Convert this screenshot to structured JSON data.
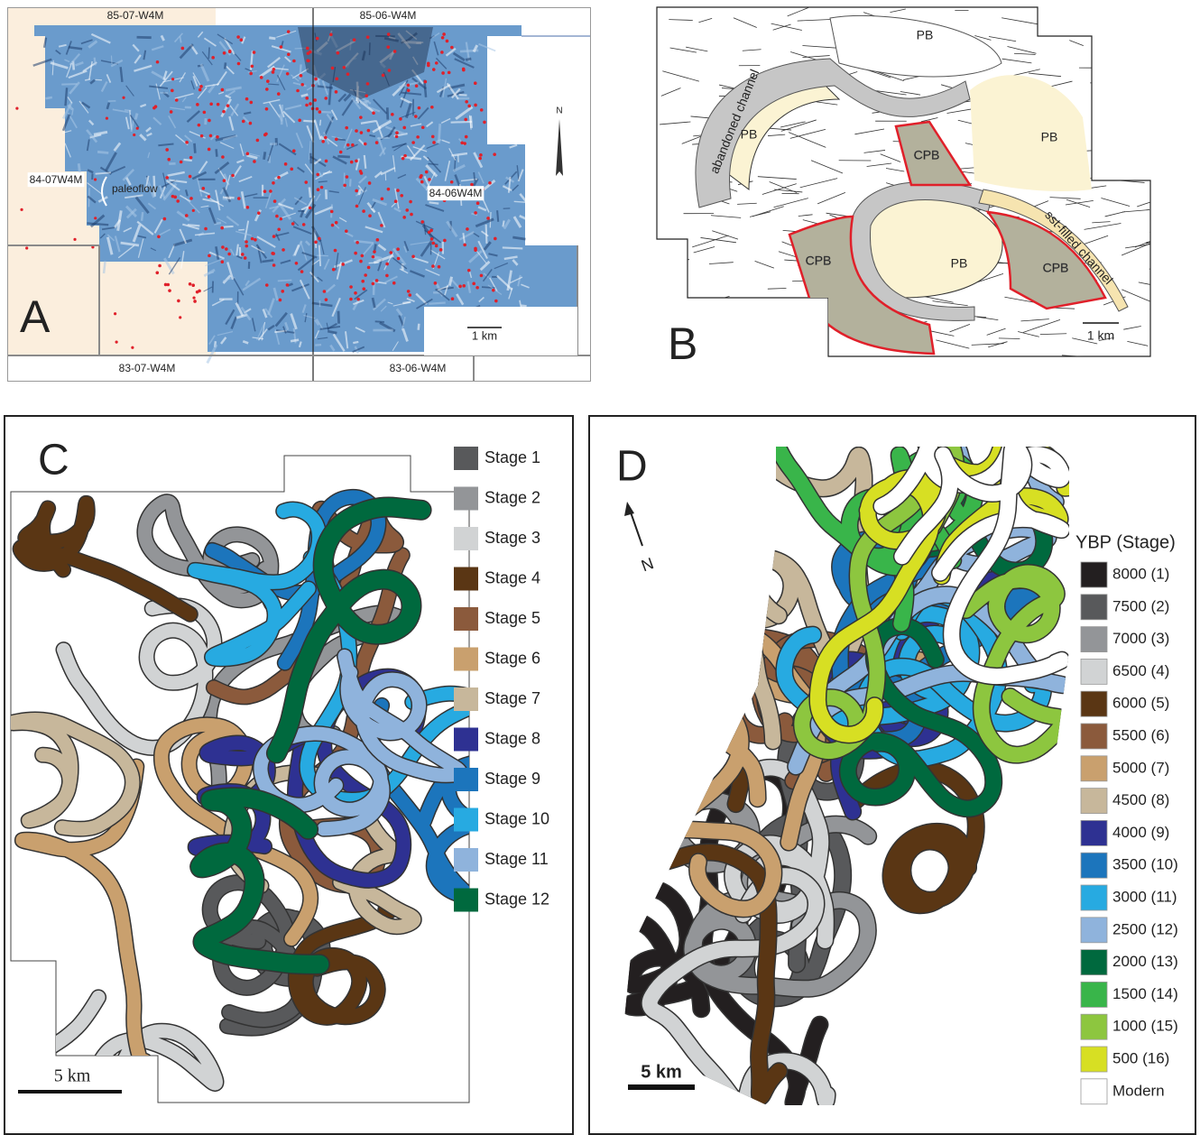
{
  "panel_a": {
    "label": "A",
    "townships": [
      "85-07-W4M",
      "85-06-W4M",
      "84-07W4M",
      "84-06W4M",
      "83-07-W4M",
      "83-06-W4M"
    ],
    "paleoflow": "paleoflow",
    "north": "N",
    "scale": "1 km"
  },
  "panel_b": {
    "label": "B",
    "pb_labels": [
      "PB",
      "PB",
      "PB",
      "PB"
    ],
    "cpb_labels": [
      "CPB",
      "CPB",
      "CPB"
    ],
    "abandoned_channel": "abandoned channel",
    "sst_filled_channel": "sst-filled channel",
    "scale": "1 km"
  },
  "panel_c": {
    "label": "C",
    "scale": "5 km",
    "legend": [
      {
        "name": "Stage 1",
        "color": "#58595b"
      },
      {
        "name": "Stage 2",
        "color": "#939598"
      },
      {
        "name": "Stage 3",
        "color": "#d1d3d4"
      },
      {
        "name": "Stage 4",
        "color": "#5a3614"
      },
      {
        "name": "Stage 5",
        "color": "#8b5a3c"
      },
      {
        "name": "Stage 6",
        "color": "#c9a06e"
      },
      {
        "name": "Stage 7",
        "color": "#c7b79b"
      },
      {
        "name": "Stage 8",
        "color": "#2e3192"
      },
      {
        "name": "Stage 9",
        "color": "#1c75bc"
      },
      {
        "name": "Stage 10",
        "color": "#27aae1"
      },
      {
        "name": "Stage 11",
        "color": "#8fb3dc"
      },
      {
        "name": "Stage 12",
        "color": "#00693e"
      }
    ]
  },
  "panel_d": {
    "label": "D",
    "north": "N",
    "legend_title": "YBP (Stage)",
    "scale": "5 km",
    "legend": [
      {
        "name": "8000 (1)",
        "color": "#231f20"
      },
      {
        "name": "7500 (2)",
        "color": "#58595b"
      },
      {
        "name": "7000 (3)",
        "color": "#939598"
      },
      {
        "name": "6500 (4)",
        "color": "#d1d3d4"
      },
      {
        "name": "6000 (5)",
        "color": "#5a3614"
      },
      {
        "name": "5500 (6)",
        "color": "#8b5a3c"
      },
      {
        "name": "5000 (7)",
        "color": "#c9a06e"
      },
      {
        "name": "4500 (8)",
        "color": "#c7b79b"
      },
      {
        "name": "4000 (9)",
        "color": "#2e3192"
      },
      {
        "name": "3500 (10)",
        "color": "#1c75bc"
      },
      {
        "name": "3000 (11)",
        "color": "#27aae1"
      },
      {
        "name": "2500 (12)",
        "color": "#8fb3dc"
      },
      {
        "name": "2000 (13)",
        "color": "#00693e"
      },
      {
        "name": "1500 (14)",
        "color": "#39b54a"
      },
      {
        "name": "1000 (15)",
        "color": "#8dc63f"
      },
      {
        "name": "500 (16)",
        "color": "#d7df23"
      },
      {
        "name": "Modern",
        "color": "#ffffff"
      }
    ]
  }
}
